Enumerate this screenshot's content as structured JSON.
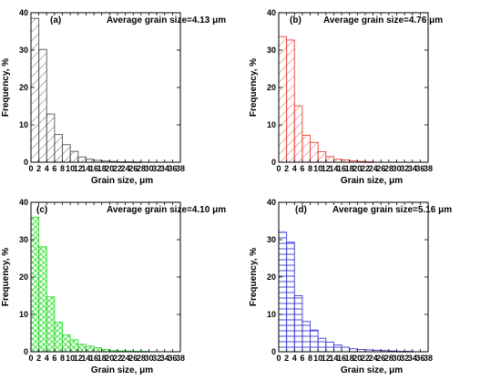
{
  "chart_data": [
    {
      "type": "bar",
      "panel_label": "(a)",
      "annotation": "Average grain size=4.13 μm",
      "xlabel": "Grain size, μm",
      "ylabel": "Frequency, %",
      "xlim": [
        0,
        38
      ],
      "ylim": [
        0,
        40
      ],
      "xticks": [
        0,
        2,
        4,
        6,
        8,
        10,
        12,
        14,
        16,
        18,
        20,
        22,
        24,
        26,
        28,
        30,
        32,
        34,
        36,
        38
      ],
      "yticks": [
        0,
        10,
        20,
        30,
        40
      ],
      "bin_width": 2,
      "bin_starts": [
        0,
        2,
        4,
        6,
        8,
        10,
        12,
        14,
        16,
        18,
        20,
        22,
        24,
        26
      ],
      "values": [
        38.5,
        30.2,
        12.9,
        7.4,
        4.7,
        2.9,
        1.4,
        0.8,
        0.5,
        0.3,
        0.2,
        0.1,
        0.1,
        0.05
      ],
      "color": "#555555",
      "pattern": "diagonal"
    },
    {
      "type": "bar",
      "panel_label": "(b)",
      "annotation": "Average grain size=4.76 μm",
      "xlabel": "Grain size, μm",
      "ylabel": "Frequency, %",
      "xlim": [
        0,
        38
      ],
      "ylim": [
        0,
        40
      ],
      "xticks": [
        0,
        2,
        4,
        6,
        8,
        10,
        12,
        14,
        16,
        18,
        20,
        22,
        24,
        26,
        28,
        30,
        32,
        34,
        36,
        38
      ],
      "yticks": [
        0,
        10,
        20,
        30,
        40
      ],
      "bin_width": 2,
      "bin_starts": [
        0,
        2,
        4,
        6,
        8,
        10,
        12,
        14,
        16,
        18,
        20,
        22
      ],
      "values": [
        33.6,
        32.7,
        15.1,
        7.2,
        5.3,
        2.8,
        1.5,
        0.8,
        0.6,
        0.4,
        0.2,
        0.1
      ],
      "color": "#e8443a",
      "pattern": "diagonal"
    },
    {
      "type": "bar",
      "panel_label": "(c)",
      "annotation": "Average grain size=4.10 μm",
      "xlabel": "Grain size, μm",
      "ylabel": "Frequency, %",
      "xlim": [
        0,
        38
      ],
      "ylim": [
        0,
        40
      ],
      "xticks": [
        0,
        2,
        4,
        6,
        8,
        10,
        12,
        14,
        16,
        18,
        20,
        22,
        24,
        26,
        28,
        30,
        32,
        34,
        36,
        38
      ],
      "yticks": [
        0,
        10,
        20,
        30,
        40
      ],
      "bin_width": 2,
      "bin_starts": [
        0,
        2,
        4,
        6,
        8,
        10,
        12,
        14,
        16,
        18,
        20,
        22,
        24,
        26,
        28
      ],
      "values": [
        36.0,
        28.1,
        14.7,
        7.9,
        4.5,
        3.2,
        2.0,
        1.5,
        1.1,
        0.6,
        0.3,
        0.2,
        0.2,
        0.1,
        0.1
      ],
      "color": "#33dd33",
      "pattern": "crosshatch"
    },
    {
      "type": "bar",
      "panel_label": "(d)",
      "annotation": "Average grain size=5.16 μm",
      "xlabel": "Grain size, μm",
      "ylabel": "Frequency, %",
      "xlim": [
        0,
        38
      ],
      "ylim": [
        0,
        40
      ],
      "xticks": [
        0,
        2,
        4,
        6,
        8,
        10,
        12,
        14,
        16,
        18,
        20,
        22,
        24,
        26,
        28,
        30,
        32,
        34,
        36,
        38
      ],
      "yticks": [
        0,
        10,
        20,
        30,
        40
      ],
      "bin_width": 2,
      "bin_starts": [
        0,
        2,
        4,
        6,
        8,
        10,
        12,
        14,
        16,
        18,
        20,
        22,
        24,
        26,
        28,
        30,
        32
      ],
      "values": [
        32.0,
        29.3,
        15.0,
        8.1,
        5.8,
        3.6,
        2.6,
        1.8,
        1.2,
        0.8,
        0.6,
        0.5,
        0.4,
        0.3,
        0.2,
        0.1,
        0.1
      ],
      "color": "#3a3ad0",
      "pattern": "horizontal"
    }
  ]
}
